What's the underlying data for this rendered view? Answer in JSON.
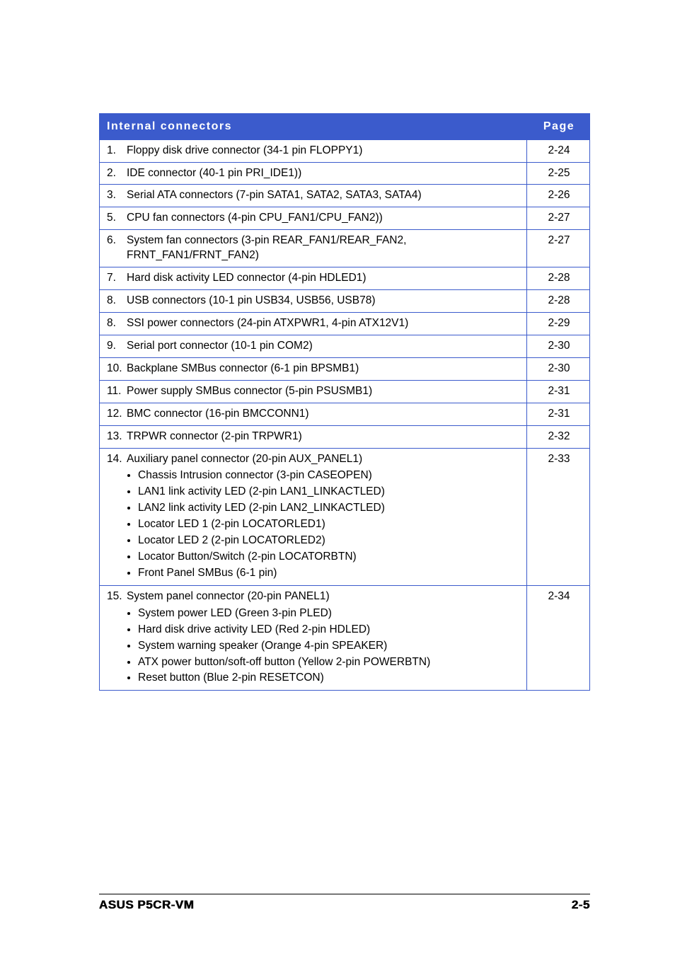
{
  "table": {
    "header_label": "Internal connectors",
    "header_page": "Page",
    "header_bg": "#3b5bcc",
    "header_color": "#ffffff",
    "border_color": "#3b5bcc",
    "font_size": 15.5,
    "rows": [
      {
        "num": "1.",
        "text": "Floppy disk drive connector (34-1 pin FLOPPY1)",
        "page": "2-24"
      },
      {
        "num": "2.",
        "text": "IDE connector (40-1 pin PRI_IDE1))",
        "page": "2-25"
      },
      {
        "num": "3.",
        "text": "Serial ATA connectors (7-pin SATA1, SATA2, SATA3, SATA4)",
        "page": "2-26"
      },
      {
        "num": "5.",
        "text": "CPU fan connectors (4-pin CPU_FAN1/CPU_FAN2))",
        "page": "2-27"
      },
      {
        "num": "6.",
        "text": "System fan connectors (3-pin REAR_FAN1/REAR_FAN2, FRNT_FAN1/FRNT_FAN2)",
        "page": "2-27"
      },
      {
        "num": "7.",
        "text": "Hard disk activity LED connector (4-pin HDLED1)",
        "page": "2-28"
      },
      {
        "num": "8.",
        "text": "USB connectors (10-1 pin USB34, USB56, USB78)",
        "page": "2-28"
      },
      {
        "num": "8.",
        "text": "SSI power connectors  (24-pin ATXPWR1, 4-pin ATX12V1)",
        "page": "2-29"
      },
      {
        "num": "9.",
        "text": "Serial port connector (10-1 pin COM2)",
        "page": "2-30"
      },
      {
        "num": "10.",
        "text": "Backplane SMBus connector (6-1 pin BPSMB1)",
        "page": "2-30"
      },
      {
        "num": "11.",
        "text": "Power supply SMBus connector (5-pin PSUSMB1)",
        "page": "2-31"
      },
      {
        "num": "12.",
        "text": "BMC connector (16-pin BMCCONN1)",
        "page": "2-31"
      },
      {
        "num": "13.",
        "text": "TRPWR connector (2-pin TRPWR1)",
        "page": "2-32"
      },
      {
        "num": "14.",
        "text": "Auxiliary panel connector (20-pin AUX_PANEL1)",
        "page": "2-33",
        "sub": [
          "Chassis Intrusion connector (3-pin CASEOPEN)",
          "LAN1 link activity LED (2-pin LAN1_LINKACTLED)",
          "LAN2 link activity LED (2-pin LAN2_LINKACTLED)",
          "Locator LED 1 (2-pin LOCATORLED1)",
          "Locator LED 2 (2-pin LOCATORLED2)",
          "Locator Button/Switch (2-pin LOCATORBTN)",
          "Front Panel SMBus (6-1 pin)"
        ]
      },
      {
        "num": "15.",
        "text": "System panel connector (20-pin PANEL1)",
        "page": "2-34",
        "sub": [
          "System power LED (Green 3-pin PLED)",
          "Hard disk drive activity LED (Red 2-pin HDLED)",
          "System warning speaker (Orange 4-pin SPEAKER)",
          "ATX power button/soft-off button (Yellow 2-pin POWERBTN)",
          "Reset button (Blue 2-pin RESETCON)"
        ]
      }
    ]
  },
  "footer": {
    "left": "ASUS P5CR-VM",
    "right": "2-5"
  }
}
